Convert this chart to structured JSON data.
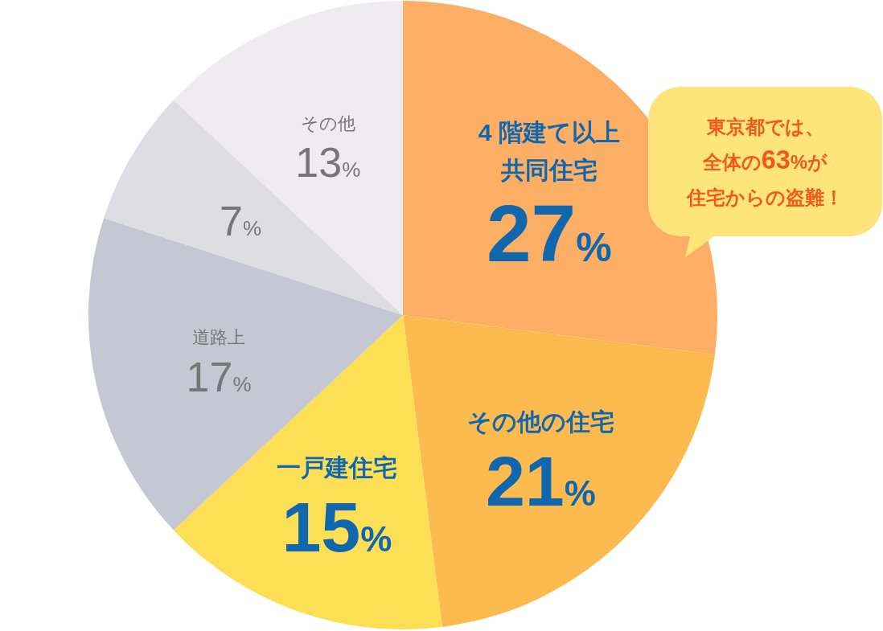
{
  "chart_data": {
    "type": "pie",
    "categories": [
      "4 階建て以上共同住宅",
      "その他の住宅",
      "一戸建住宅",
      "道路上",
      null,
      "その他"
    ],
    "values": [
      27,
      21,
      15,
      17,
      7,
      13
    ],
    "colors": [
      "#fbae64",
      "#fdbb4f",
      "#fddf55",
      "#c5c7d3",
      "#dddde3",
      "#eeecef"
    ],
    "value_labels": [
      "27%",
      "21%",
      "15%",
      "17%",
      "7%",
      "13%"
    ],
    "annotations": [
      "東京都では、",
      "全体の63%が",
      "住宅からの盗難！"
    ]
  }
}
